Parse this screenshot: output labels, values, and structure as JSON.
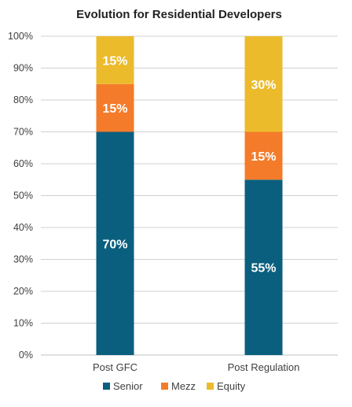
{
  "chart_data": {
    "type": "bar",
    "stacked": true,
    "title": "Evolution for Residential Developers",
    "categories": [
      "Post GFC",
      "Post Regulation"
    ],
    "series": [
      {
        "name": "Senior",
        "values": [
          70,
          55
        ],
        "labels": [
          "70%",
          "55%"
        ],
        "color": "#0a5f7e"
      },
      {
        "name": "Mezz",
        "values": [
          15,
          15
        ],
        "labels": [
          "15%",
          "15%"
        ],
        "color": "#f47b2a"
      },
      {
        "name": "Equity",
        "values": [
          15,
          30
        ],
        "labels": [
          "15%",
          "30%"
        ],
        "color": "#ecbb2c"
      }
    ],
    "ylim": [
      0,
      100
    ],
    "yticks": [
      "0%",
      "10%",
      "20%",
      "30%",
      "40%",
      "50%",
      "60%",
      "70%",
      "80%",
      "90%",
      "100%"
    ],
    "grid": true,
    "legend_position": "bottom"
  }
}
